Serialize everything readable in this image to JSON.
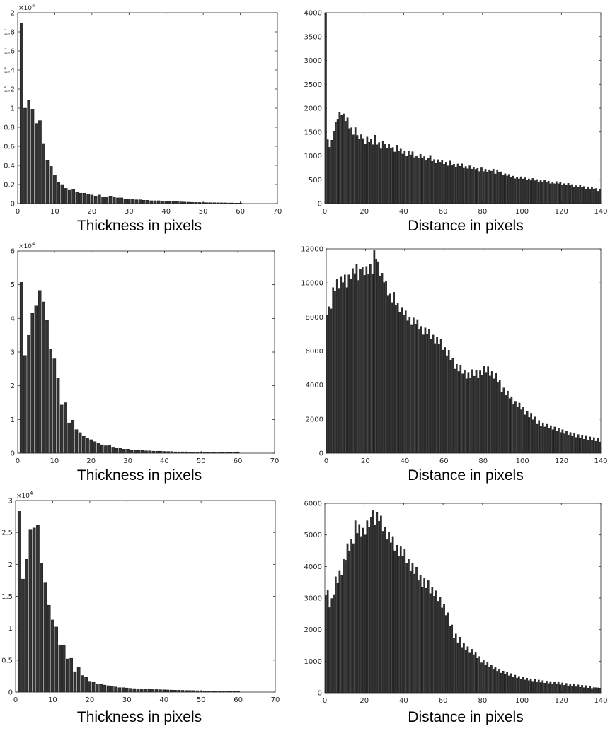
{
  "chart_data": [
    {
      "type": "bar",
      "xlabel": "Thickness in pixels",
      "ylabel": "",
      "xlim": [
        0,
        70
      ],
      "ylim": [
        0,
        2
      ],
      "xticks": [
        "0",
        "10",
        "20",
        "30",
        "40",
        "50",
        "60",
        "70"
      ],
      "yticks": [
        "0",
        "0.2",
        "0.4",
        "0.6",
        "0.8",
        "1",
        "1.2",
        "1.4",
        "1.6",
        "1.8",
        "2"
      ],
      "exponent_label": "×10",
      "exponent": "4",
      "bar_color": "#333333",
      "x": [
        1,
        2,
        3,
        4,
        5,
        6,
        7,
        8,
        9,
        10,
        11,
        12,
        13,
        14,
        15,
        16,
        17,
        18,
        19,
        20,
        21,
        22,
        23,
        24,
        25,
        26,
        27,
        28,
        29,
        30,
        31,
        32,
        33,
        34,
        35,
        36,
        37,
        38,
        39,
        40,
        41,
        42,
        43,
        44,
        45,
        46,
        47,
        48,
        49,
        50,
        51,
        52,
        53,
        54,
        55,
        56,
        57,
        58,
        59,
        60
      ],
      "values": [
        1.89,
        1.0,
        1.08,
        0.99,
        0.84,
        0.87,
        0.63,
        0.45,
        0.39,
        0.3,
        0.22,
        0.2,
        0.16,
        0.14,
        0.15,
        0.12,
        0.11,
        0.11,
        0.1,
        0.09,
        0.08,
        0.09,
        0.07,
        0.07,
        0.08,
        0.07,
        0.06,
        0.06,
        0.05,
        0.05,
        0.045,
        0.04,
        0.04,
        0.035,
        0.035,
        0.03,
        0.03,
        0.03,
        0.025,
        0.025,
        0.02,
        0.02,
        0.02,
        0.018,
        0.016,
        0.015,
        0.014,
        0.013,
        0.012,
        0.011,
        0.01,
        0.01,
        0.009,
        0.009,
        0.008,
        0.008,
        0.007,
        0.007,
        0.006,
        0.006
      ]
    },
    {
      "type": "bar",
      "xlabel": "Distance in pixels",
      "ylabel": "",
      "xlim": [
        0,
        140
      ],
      "ylim": [
        0,
        4000
      ],
      "xticks": [
        "0",
        "20",
        "40",
        "60",
        "80",
        "100",
        "120",
        "140"
      ],
      "yticks": [
        "0",
        "500",
        "1000",
        "1500",
        "2000",
        "2500",
        "3000",
        "3500",
        "4000"
      ],
      "bar_color": "#333333",
      "x_start": 0.5,
      "x_step": 1,
      "anchors": [
        [
          0,
          4000
        ],
        [
          1,
          1560
        ],
        [
          2,
          1120
        ],
        [
          3,
          1240
        ],
        [
          5,
          1600
        ],
        [
          7,
          1850
        ],
        [
          9,
          1900
        ],
        [
          11,
          1750
        ],
        [
          13,
          1580
        ],
        [
          15,
          1500
        ],
        [
          18,
          1400
        ],
        [
          20,
          1340
        ],
        [
          25,
          1290
        ],
        [
          30,
          1230
        ],
        [
          35,
          1160
        ],
        [
          40,
          1080
        ],
        [
          45,
          1010
        ],
        [
          50,
          960
        ],
        [
          55,
          920
        ],
        [
          60,
          860
        ],
        [
          65,
          820
        ],
        [
          70,
          780
        ],
        [
          75,
          740
        ],
        [
          80,
          700
        ],
        [
          85,
          700
        ],
        [
          90,
          640
        ],
        [
          95,
          560
        ],
        [
          100,
          530
        ],
        [
          110,
          470
        ],
        [
          120,
          420
        ],
        [
          130,
          350
        ],
        [
          140,
          280
        ]
      ],
      "noise": [
        0,
        0,
        0,
        0,
        0,
        40,
        -30,
        60,
        -40,
        20,
        -60,
        90,
        -50,
        30,
        -80,
        110,
        -20,
        -70,
        60,
        10,
        -90,
        70,
        -30,
        40,
        -60,
        150,
        -40,
        20,
        -100,
        80,
        30,
        -50,
        60,
        -30,
        10,
        -70,
        90,
        -20,
        40,
        -50,
        20,
        -60,
        50,
        -10,
        70,
        -40,
        10,
        -30,
        60,
        -20,
        30,
        -50,
        20,
        80,
        -40,
        10,
        -60,
        30,
        -10,
        40,
        -30,
        20,
        -50,
        60,
        -20,
        10,
        -40,
        30,
        -10,
        50,
        -20,
        10,
        -30,
        40,
        -20,
        30,
        -10,
        20,
        -40,
        60,
        -30,
        20,
        -50,
        10,
        -20,
        30,
        -60,
        40,
        -10,
        20,
        -30,
        10,
        -20,
        30,
        -10,
        20,
        -30,
        10,
        -20,
        30,
        -10,
        20,
        -30,
        10,
        -20,
        30,
        -10,
        20,
        -30,
        10,
        -20,
        30,
        -10,
        20,
        -30,
        10,
        -20,
        30,
        -10,
        20,
        -30,
        10,
        -20,
        30,
        -10,
        20,
        -30,
        10,
        -20,
        30,
        -10,
        20,
        -30,
        10,
        -20,
        30,
        -10,
        20,
        -30,
        10,
        -20,
        30,
        -10,
        20
      ]
    },
    {
      "type": "bar",
      "xlabel": "Thickness in pixels",
      "ylabel": "",
      "xlim": [
        0,
        70
      ],
      "ylim": [
        0,
        6
      ],
      "xticks": [
        "0",
        "10",
        "20",
        "30",
        "40",
        "50",
        "60",
        "70"
      ],
      "yticks": [
        "0",
        "1",
        "2",
        "3",
        "4",
        "5",
        "6"
      ],
      "exponent_label": "×10",
      "exponent": "4",
      "bar_color": "#333333",
      "x": [
        1,
        2,
        3,
        4,
        5,
        6,
        7,
        8,
        9,
        10,
        11,
        12,
        13,
        14,
        15,
        16,
        17,
        18,
        19,
        20,
        21,
        22,
        23,
        24,
        25,
        26,
        27,
        28,
        29,
        30,
        31,
        32,
        33,
        34,
        35,
        36,
        37,
        38,
        39,
        40,
        41,
        42,
        43,
        44,
        45,
        46,
        47,
        48,
        49,
        50,
        51,
        52,
        53,
        54,
        55,
        56,
        57,
        58,
        59,
        60
      ],
      "values": [
        5.07,
        2.9,
        3.5,
        4.15,
        4.37,
        4.83,
        4.49,
        3.94,
        3.08,
        2.8,
        2.23,
        1.43,
        1.5,
        0.9,
        0.98,
        0.7,
        0.61,
        0.5,
        0.45,
        0.4,
        0.34,
        0.3,
        0.25,
        0.22,
        0.24,
        0.18,
        0.15,
        0.14,
        0.12,
        0.12,
        0.1,
        0.09,
        0.08,
        0.08,
        0.07,
        0.07,
        0.06,
        0.06,
        0.06,
        0.05,
        0.05,
        0.05,
        0.04,
        0.04,
        0.04,
        0.04,
        0.035,
        0.035,
        0.03,
        0.03,
        0.03,
        0.03,
        0.025,
        0.025,
        0.025,
        0.02,
        0.02,
        0.02,
        0.02,
        0.02
      ]
    },
    {
      "type": "bar",
      "xlabel": "Distance in pixels",
      "ylabel": "",
      "xlim": [
        0,
        140
      ],
      "ylim": [
        0,
        12000
      ],
      "xticks": [
        "0",
        "20",
        "40",
        "60",
        "80",
        "100",
        "120",
        "140"
      ],
      "yticks": [
        "0",
        "2000",
        "4000",
        "6000",
        "8000",
        "10000",
        "12000"
      ],
      "bar_color": "#333333",
      "x_start": 0.5,
      "x_step": 1,
      "anchors": [
        [
          0,
          8100
        ],
        [
          2,
          8500
        ],
        [
          4,
          9600
        ],
        [
          6,
          10000
        ],
        [
          8,
          10200
        ],
        [
          10,
          9900
        ],
        [
          12,
          10400
        ],
        [
          15,
          10700
        ],
        [
          18,
          10600
        ],
        [
          20,
          10800
        ],
        [
          22,
          10700
        ],
        [
          24,
          11000
        ],
        [
          25,
          11800
        ],
        [
          28,
          10500
        ],
        [
          30,
          10000
        ],
        [
          32,
          9300
        ],
        [
          35,
          9000
        ],
        [
          40,
          8100
        ],
        [
          45,
          7700
        ],
        [
          50,
          7200
        ],
        [
          55,
          6800
        ],
        [
          60,
          6200
        ],
        [
          65,
          5300
        ],
        [
          70,
          4700
        ],
        [
          75,
          4600
        ],
        [
          80,
          4800
        ],
        [
          83,
          4900
        ],
        [
          86,
          4500
        ],
        [
          90,
          3800
        ],
        [
          95,
          3100
        ],
        [
          100,
          2600
        ],
        [
          105,
          2100
        ],
        [
          110,
          1700
        ],
        [
          115,
          1500
        ],
        [
          120,
          1300
        ],
        [
          125,
          1100
        ],
        [
          130,
          950
        ],
        [
          135,
          850
        ],
        [
          140,
          750
        ]
      ],
      "noise": [
        0,
        200,
        -300,
        400,
        -200,
        300,
        -400,
        200,
        -100,
        500,
        -300,
        200,
        -200,
        300,
        -100,
        400,
        -500,
        200,
        300,
        -300,
        200,
        -200,
        300,
        -400,
        500,
        -200,
        100,
        -300,
        200,
        -100,
        300,
        -200,
        100,
        -300,
        400,
        -200,
        100,
        -300,
        200,
        -100,
        300,
        -200,
        100,
        -300,
        200,
        -100,
        300,
        -200,
        100,
        -300,
        200,
        -100,
        300,
        -200,
        100,
        -300,
        200,
        -100,
        300,
        -200,
        100,
        -200,
        300,
        -100,
        200,
        -300,
        100,
        -200,
        300,
        -100,
        200,
        -300,
        100,
        -200,
        300,
        -100,
        200,
        -300,
        100,
        -200,
        300,
        -100,
        200,
        -300,
        100,
        -200,
        300,
        -100,
        200,
        -300,
        100,
        -200,
        200,
        -100,
        150,
        -200,
        100,
        -150,
        200,
        -100,
        150,
        -200,
        100,
        -150,
        200,
        -100,
        150,
        -200,
        100,
        -150,
        100,
        -100,
        100,
        -100,
        100,
        -100,
        100,
        -100,
        100,
        -100,
        100,
        -100,
        100,
        -100,
        100,
        -100,
        100,
        -100,
        100,
        -100,
        100,
        -100,
        100,
        -100,
        100,
        -100,
        100,
        -100,
        100,
        -100
      ]
    },
    {
      "type": "bar",
      "xlabel": "Thickness in pixels",
      "ylabel": "",
      "xlim": [
        0,
        70
      ],
      "ylim": [
        0,
        3
      ],
      "xticks": [
        "0",
        "10",
        "20",
        "30",
        "40",
        "50",
        "60",
        "70"
      ],
      "yticks": [
        "0",
        "0.5",
        "1",
        "1.5",
        "2",
        "2.5",
        "3"
      ],
      "exponent_label": "×10",
      "exponent": "4",
      "bar_color": "#333333",
      "x": [
        1,
        2,
        3,
        4,
        5,
        6,
        7,
        8,
        9,
        10,
        11,
        12,
        13,
        14,
        15,
        16,
        17,
        18,
        19,
        20,
        21,
        22,
        23,
        24,
        25,
        26,
        27,
        28,
        29,
        30,
        31,
        32,
        33,
        34,
        35,
        36,
        37,
        38,
        39,
        40,
        41,
        42,
        43,
        44,
        45,
        46,
        47,
        48,
        49,
        50,
        51,
        52,
        53,
        54,
        55,
        56,
        57,
        58,
        59,
        60
      ],
      "values": [
        2.83,
        1.77,
        2.08,
        2.55,
        2.57,
        2.61,
        2.02,
        1.72,
        1.36,
        1.13,
        1.02,
        0.74,
        0.74,
        0.52,
        0.53,
        0.32,
        0.39,
        0.26,
        0.24,
        0.17,
        0.16,
        0.13,
        0.12,
        0.11,
        0.1,
        0.09,
        0.08,
        0.07,
        0.07,
        0.065,
        0.06,
        0.055,
        0.05,
        0.05,
        0.045,
        0.045,
        0.04,
        0.04,
        0.038,
        0.036,
        0.034,
        0.032,
        0.03,
        0.03,
        0.028,
        0.026,
        0.025,
        0.024,
        0.022,
        0.02,
        0.02,
        0.018,
        0.017,
        0.016,
        0.015,
        0.014,
        0.013,
        0.012,
        0.011,
        0.01
      ]
    },
    {
      "type": "bar",
      "xlabel": "Distance in pixels",
      "ylabel": "",
      "xlim": [
        0,
        140
      ],
      "ylim": [
        0,
        6000
      ],
      "xticks": [
        "0",
        "20",
        "40",
        "60",
        "80",
        "100",
        "120",
        "140"
      ],
      "yticks": [
        "0",
        "1000",
        "2000",
        "3000",
        "4000",
        "5000",
        "6000"
      ],
      "bar_color": "#333333",
      "x_start": 0.5,
      "x_step": 1,
      "anchors": [
        [
          0,
          3100
        ],
        [
          2,
          3150
        ],
        [
          3,
          2650
        ],
        [
          5,
          3400
        ],
        [
          7,
          3700
        ],
        [
          9,
          4000
        ],
        [
          11,
          4400
        ],
        [
          13,
          4700
        ],
        [
          15,
          5000
        ],
        [
          17,
          5200
        ],
        [
          20,
          5100
        ],
        [
          22,
          5300
        ],
        [
          25,
          5500
        ],
        [
          27,
          5600
        ],
        [
          30,
          5200
        ],
        [
          33,
          4900
        ],
        [
          36,
          4600
        ],
        [
          40,
          4400
        ],
        [
          45,
          3900
        ],
        [
          50,
          3500
        ],
        [
          55,
          3200
        ],
        [
          60,
          2800
        ],
        [
          63,
          2300
        ],
        [
          66,
          1800
        ],
        [
          70,
          1500
        ],
        [
          75,
          1300
        ],
        [
          80,
          1000
        ],
        [
          85,
          800
        ],
        [
          90,
          650
        ],
        [
          95,
          550
        ],
        [
          100,
          450
        ],
        [
          110,
          350
        ],
        [
          120,
          280
        ],
        [
          130,
          200
        ],
        [
          140,
          150
        ]
      ],
      "noise": [
        0,
        100,
        -200,
        150,
        -100,
        200,
        -150,
        100,
        -200,
        150,
        -100,
        250,
        -150,
        100,
        -200,
        400,
        -100,
        150,
        -200,
        100,
        -150,
        200,
        -100,
        150,
        300,
        -200,
        150,
        -100,
        200,
        -150,
        100,
        -200,
        150,
        -100,
        200,
        -150,
        100,
        -200,
        150,
        -100,
        200,
        -150,
        100,
        -200,
        150,
        -100,
        200,
        -150,
        100,
        -200,
        150,
        -100,
        200,
        -150,
        100,
        -100,
        150,
        -100,
        100,
        -150,
        100,
        -100,
        150,
        -100,
        100,
        -150,
        100,
        -100,
        150,
        -100,
        100,
        -80,
        60,
        -80,
        60,
        -60,
        80,
        -60,
        60,
        -80,
        60,
        -60,
        80,
        -60,
        60,
        -40,
        50,
        -40,
        50,
        -40,
        50,
        -40,
        50,
        -40,
        50,
        -40,
        40,
        -30,
        40,
        -30,
        40,
        -30,
        40,
        -30,
        40,
        -30,
        40,
        -30,
        40,
        -30,
        40,
        -30,
        40,
        -30,
        40,
        -30,
        40,
        -30,
        40,
        -30,
        40,
        -30,
        40,
        -30,
        40,
        -30,
        40,
        -30,
        40,
        -30,
        40,
        -30,
        40,
        -30,
        40,
        -30
      ]
    }
  ]
}
